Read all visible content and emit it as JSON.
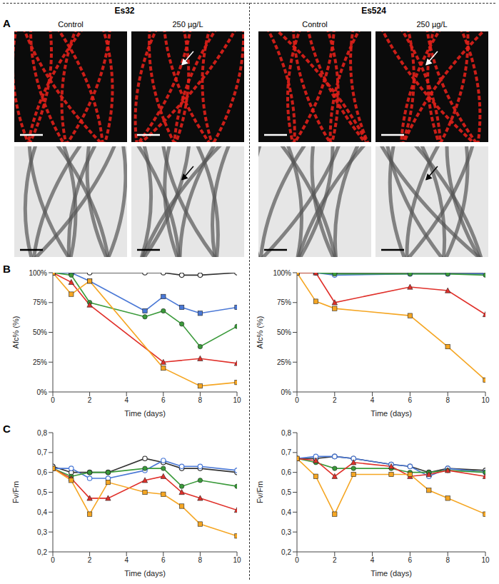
{
  "strains": [
    "Es32",
    "Es524"
  ],
  "panel_a": {
    "label": "A",
    "conditions": [
      "Control",
      "250 µg/L"
    ]
  },
  "panel_b_label": "B",
  "panel_c_label": "C",
  "chart_data": [
    {
      "type": "line",
      "x": [
        0,
        1,
        2,
        5,
        6,
        7,
        8,
        10
      ],
      "xlim": [
        0,
        10
      ],
      "xticks": [
        0,
        2,
        4,
        6,
        8,
        10
      ],
      "xlabel": "Time (days)",
      "ylabel": "Afc% (%)",
      "ylim": [
        0,
        100
      ],
      "yticks": [
        {
          "value": 0,
          "label": "0%"
        },
        {
          "value": 25,
          "label": "25%"
        },
        {
          "value": 50,
          "label": "50%"
        },
        {
          "value": 75,
          "label": "75%"
        },
        {
          "value": 100,
          "label": "100%"
        }
      ],
      "series": [
        {
          "color": "#333333",
          "marker": "open_circle",
          "values": [
            100,
            100,
            100,
            100,
            100,
            98,
            98,
            100
          ]
        },
        {
          "color": "#4a78d6",
          "marker": "square",
          "values": [
            100,
            100,
            93,
            68,
            80,
            71,
            66,
            71
          ]
        },
        {
          "color": "#3a9a3a",
          "marker": "circle",
          "values": [
            100,
            98,
            75,
            63,
            68,
            57,
            38,
            55
          ]
        },
        {
          "color": "#e0302a",
          "marker": "triangle",
          "values": [
            100,
            92,
            73,
            null,
            25,
            null,
            28,
            24
          ]
        },
        {
          "color": "#f5a623",
          "marker": "square",
          "values": [
            100,
            82,
            93,
            null,
            20,
            null,
            5,
            8
          ]
        }
      ]
    },
    {
      "type": "line",
      "x": [
        0,
        1,
        2,
        6,
        8,
        10
      ],
      "xlim": [
        0,
        10
      ],
      "xticks": [
        0,
        2,
        4,
        6,
        8,
        10
      ],
      "xlabel": "Time (days)",
      "ylabel": "Afc% (%)",
      "ylim": [
        0,
        100
      ],
      "yticks": [
        {
          "value": 0,
          "label": "0%"
        },
        {
          "value": 25,
          "label": "25%"
        },
        {
          "value": 50,
          "label": "50%"
        },
        {
          "value": 75,
          "label": "75%"
        },
        {
          "value": 100,
          "label": "100%"
        }
      ],
      "series": [
        {
          "color": "#333333",
          "marker": "open_circle",
          "values": [
            100,
            100,
            100,
            100,
            100,
            100
          ]
        },
        {
          "color": "#4a78d6",
          "marker": "open_circle",
          "values": [
            100,
            100,
            98,
            99,
            99,
            99
          ]
        },
        {
          "color": "#3a9a3a",
          "marker": "circle",
          "values": [
            100,
            100,
            99,
            99,
            99,
            98
          ]
        },
        {
          "color": "#e0302a",
          "marker": "triangle",
          "values": [
            100,
            100,
            75,
            88,
            85,
            65
          ]
        },
        {
          "color": "#f5a623",
          "marker": "square",
          "values": [
            100,
            76,
            70,
            64,
            38,
            10
          ]
        }
      ]
    },
    {
      "type": "line",
      "x": [
        0,
        1,
        2,
        3,
        5,
        6,
        7,
        8,
        10
      ],
      "xlim": [
        0,
        10
      ],
      "xticks": [
        0,
        2,
        4,
        6,
        8,
        10
      ],
      "xlabel": "Time (days)",
      "ylabel": "Fv/Fm",
      "ylim": [
        0.2,
        0.8
      ],
      "yticks": [
        {
          "value": 0.2,
          "label": "0,2"
        },
        {
          "value": 0.3,
          "label": "0,3"
        },
        {
          "value": 0.4,
          "label": "0,4"
        },
        {
          "value": 0.5,
          "label": "0,5"
        },
        {
          "value": 0.6,
          "label": "0,6"
        },
        {
          "value": 0.7,
          "label": "0,7"
        },
        {
          "value": 0.8,
          "label": "0,8"
        }
      ],
      "series": [
        {
          "color": "#333333",
          "marker": "open_circle",
          "values": [
            0.63,
            0.6,
            0.6,
            0.6,
            0.67,
            0.65,
            0.62,
            0.62,
            0.6
          ]
        },
        {
          "color": "#4a78d6",
          "marker": "open_circle",
          "values": [
            0.62,
            0.62,
            0.57,
            0.57,
            0.61,
            0.66,
            0.63,
            0.63,
            0.61
          ]
        },
        {
          "color": "#3a9a3a",
          "marker": "circle",
          "values": [
            0.62,
            0.58,
            0.6,
            0.6,
            0.62,
            0.62,
            0.53,
            0.56,
            0.53
          ]
        },
        {
          "color": "#e0302a",
          "marker": "triangle",
          "values": [
            0.62,
            0.57,
            0.47,
            0.47,
            0.56,
            0.58,
            0.5,
            0.47,
            0.41
          ]
        },
        {
          "color": "#f5a623",
          "marker": "square",
          "values": [
            0.62,
            0.56,
            0.39,
            0.55,
            0.5,
            0.49,
            0.43,
            0.34,
            0.28
          ]
        }
      ]
    },
    {
      "type": "line",
      "x": [
        0,
        1,
        2,
        3,
        5,
        6,
        7,
        8,
        10
      ],
      "xlim": [
        0,
        10
      ],
      "xticks": [
        0,
        2,
        4,
        6,
        8,
        10
      ],
      "xlabel": "Time (days)",
      "ylabel": "Fv/Fm",
      "ylim": [
        0.2,
        0.8
      ],
      "yticks": [
        {
          "value": 0.2,
          "label": "0,2"
        },
        {
          "value": 0.3,
          "label": "0,3"
        },
        {
          "value": 0.4,
          "label": "0,4"
        },
        {
          "value": 0.5,
          "label": "0,5"
        },
        {
          "value": 0.6,
          "label": "0,6"
        },
        {
          "value": 0.7,
          "label": "0,7"
        },
        {
          "value": 0.8,
          "label": "0,8"
        }
      ],
      "series": [
        {
          "color": "#333333",
          "marker": "open_circle",
          "values": [
            0.67,
            0.67,
            0.68,
            0.67,
            0.64,
            0.63,
            0.6,
            0.62,
            0.61
          ]
        },
        {
          "color": "#4a78d6",
          "marker": "open_circle",
          "values": [
            0.67,
            0.68,
            0.68,
            0.67,
            0.64,
            0.63,
            0.58,
            0.62,
            0.6
          ]
        },
        {
          "color": "#3a9a3a",
          "marker": "circle",
          "values": [
            0.67,
            0.65,
            0.62,
            0.62,
            0.62,
            0.6,
            0.6,
            0.61,
            0.6
          ]
        },
        {
          "color": "#e0302a",
          "marker": "triangle",
          "values": [
            0.67,
            0.66,
            0.58,
            0.65,
            0.63,
            0.58,
            0.59,
            0.61,
            0.58
          ]
        },
        {
          "color": "#f5a623",
          "marker": "square",
          "values": [
            0.67,
            0.58,
            0.39,
            0.59,
            0.59,
            0.59,
            0.51,
            0.47,
            0.39
          ]
        }
      ]
    }
  ]
}
